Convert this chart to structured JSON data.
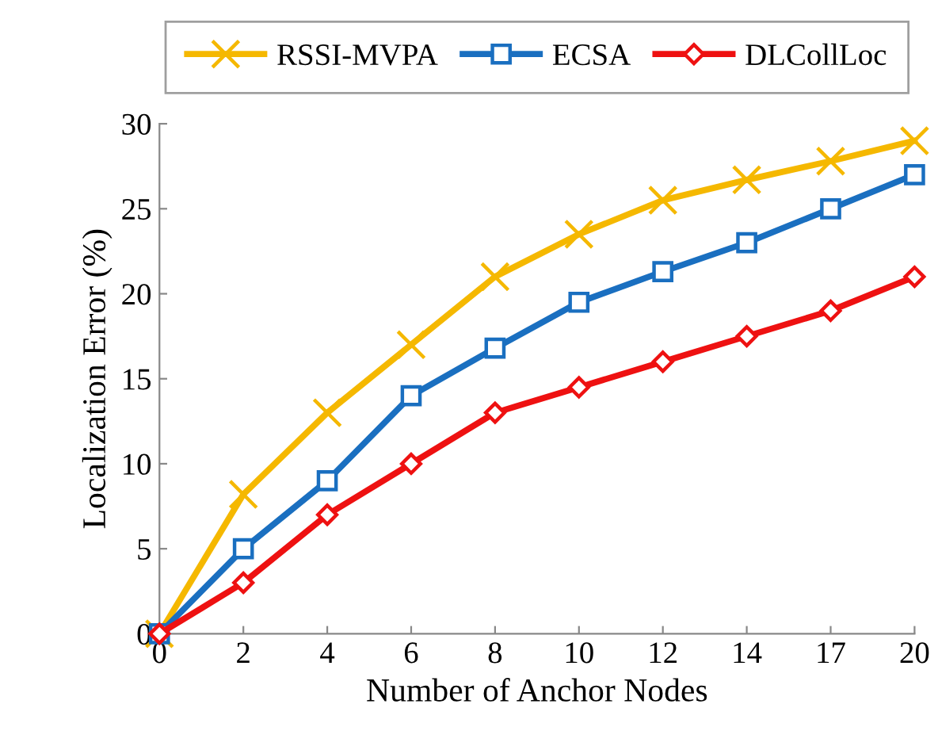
{
  "chart_data": {
    "type": "line",
    "xlabel": "Number of Anchor Nodes",
    "ylabel": "Localization Error (%)",
    "categories": [
      "0",
      "2",
      "4",
      "6",
      "8",
      "10",
      "12",
      "14",
      "17",
      "20"
    ],
    "series": [
      {
        "name": "RSSI-MVPA",
        "color": "#f5b800",
        "marker": "cross",
        "values": [
          0,
          8.2,
          13,
          17,
          21,
          23.5,
          25.5,
          26.7,
          27.8,
          29
        ]
      },
      {
        "name": "ECSA",
        "color": "#1a6fc0",
        "marker": "square",
        "values": [
          0,
          5,
          9,
          14,
          16.8,
          19.5,
          21.3,
          23,
          25,
          27
        ]
      },
      {
        "name": "DLCollLoc",
        "color": "#ee1111",
        "marker": "diamond",
        "values": [
          0,
          3,
          7,
          10,
          13,
          14.5,
          16,
          17.5,
          19,
          21
        ]
      }
    ],
    "ylim": [
      0,
      30
    ],
    "yticks": [
      0,
      5,
      10,
      15,
      20,
      25,
      30
    ],
    "grid": false,
    "legend": "top",
    "line_style": "solid"
  }
}
